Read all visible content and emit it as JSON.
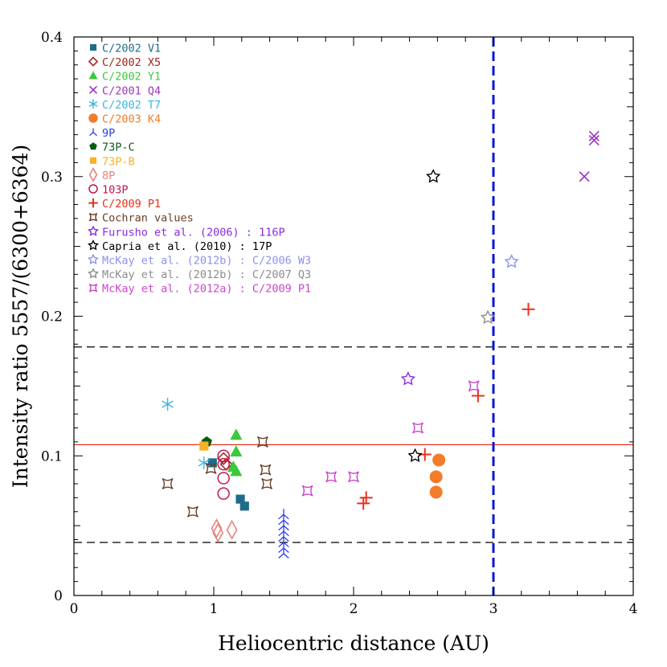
{
  "chart_data": {
    "type": "scatter",
    "xlabel": "Heliocentric distance (AU)",
    "ylabel": "Intensity ratio 5557/(6300+6364)",
    "xlim": [
      0,
      4
    ],
    "ylim": [
      0,
      0.4
    ],
    "x_ticks": [
      0,
      1,
      2,
      3,
      4
    ],
    "x_tick_labels": [
      "0",
      "1",
      "2",
      "3",
      "4"
    ],
    "y_ticks": [
      0,
      0.1,
      0.2,
      0.3,
      0.4
    ],
    "y_tick_labels": [
      "0",
      "0.1",
      "0.2",
      "0.3",
      "0.4"
    ],
    "grid": false,
    "legend_position": "top-left",
    "reference_lines": [
      {
        "orientation": "horizontal",
        "value": 0.108,
        "style": "solid",
        "color": "#e8301c"
      },
      {
        "orientation": "horizontal",
        "value": 0.178,
        "style": "dashed",
        "color": "#000000"
      },
      {
        "orientation": "horizontal",
        "value": 0.038,
        "style": "dashed",
        "color": "#000000"
      },
      {
        "orientation": "vertical",
        "value": 3.0,
        "style": "dashed",
        "color": "#0b17d4"
      }
    ],
    "series": [
      {
        "name": "C/2002 V1",
        "color": "#1f6b8c",
        "marker": "square",
        "points": [
          [
            0.99,
            0.095
          ],
          [
            1.19,
            0.069
          ],
          [
            1.22,
            0.064
          ]
        ]
      },
      {
        "name": "C/2002 X5",
        "color": "#a1261f",
        "marker": "diamond",
        "points": [
          [
            1.07,
            0.098
          ],
          [
            1.09,
            0.094
          ]
        ]
      },
      {
        "name": "C/2002 Y1",
        "color": "#3cc93c",
        "marker": "triangle",
        "points": [
          [
            1.16,
            0.115
          ],
          [
            1.16,
            0.103
          ],
          [
            1.14,
            0.092
          ],
          [
            1.16,
            0.089
          ]
        ]
      },
      {
        "name": "C/2001 Q4",
        "color": "#9d36c0",
        "marker": "x",
        "points": [
          [
            3.72,
            0.329
          ],
          [
            3.72,
            0.326
          ],
          [
            3.65,
            0.3
          ]
        ]
      },
      {
        "name": "C/2002 T7",
        "color": "#39b7e0",
        "marker": "asterisk",
        "points": [
          [
            0.67,
            0.137
          ],
          [
            0.93,
            0.095
          ]
        ]
      },
      {
        "name": "C/2003 K4",
        "color": "#f37c2a",
        "marker": "circle",
        "points": [
          [
            2.61,
            0.097
          ],
          [
            2.59,
            0.085
          ],
          [
            2.59,
            0.074
          ]
        ]
      },
      {
        "name": "9P",
        "color": "#2a3fe8",
        "marker": "tripod",
        "points": [
          [
            1.5,
            0.058
          ],
          [
            1.5,
            0.054
          ],
          [
            1.5,
            0.05
          ],
          [
            1.5,
            0.046
          ],
          [
            1.5,
            0.042
          ],
          [
            1.5,
            0.038
          ],
          [
            1.5,
            0.034
          ],
          [
            1.5,
            0.03
          ]
        ]
      },
      {
        "name": "73P-C",
        "color": "#0b5a16",
        "marker": "pentagon",
        "points": [
          [
            0.95,
            0.11
          ]
        ]
      },
      {
        "name": "73P-B",
        "color": "#f5b323",
        "marker": "square",
        "points": [
          [
            0.93,
            0.107
          ]
        ]
      },
      {
        "name": "8P",
        "color": "#e8837d",
        "marker": "diamond-tall",
        "points": [
          [
            1.02,
            0.048
          ],
          [
            1.03,
            0.045
          ],
          [
            1.13,
            0.047
          ]
        ]
      },
      {
        "name": "103P",
        "color": "#c0174f",
        "marker": "circle-open",
        "points": [
          [
            1.07,
            0.1
          ],
          [
            1.07,
            0.094
          ],
          [
            1.07,
            0.084
          ],
          [
            1.07,
            0.073
          ]
        ]
      },
      {
        "name": "C/2009 P1",
        "color": "#e8301c",
        "marker": "plus",
        "points": [
          [
            3.25,
            0.205
          ],
          [
            2.89,
            0.143
          ],
          [
            2.51,
            0.101
          ],
          [
            2.09,
            0.07
          ],
          [
            2.07,
            0.066
          ]
        ]
      },
      {
        "name": "Cochran values",
        "color": "#6b4028",
        "marker": "star4",
        "points": [
          [
            0.67,
            0.08
          ],
          [
            0.85,
            0.06
          ],
          [
            0.98,
            0.091
          ],
          [
            1.35,
            0.11
          ],
          [
            1.37,
            0.09
          ],
          [
            1.38,
            0.08
          ]
        ]
      },
      {
        "name": "Furusho et al. (2006) : 116P",
        "color": "#8a2be2",
        "marker": "star",
        "points": [
          [
            2.39,
            0.155
          ]
        ]
      },
      {
        "name": "Capria et al. (2010) : 17P",
        "color": "#000000",
        "marker": "star",
        "points": [
          [
            2.57,
            0.3
          ],
          [
            2.44,
            0.1
          ]
        ]
      },
      {
        "name": "McKay et al. (2012b) : C/2006 W3",
        "color": "#8f8ff0",
        "marker": "star",
        "points": [
          [
            3.13,
            0.239
          ]
        ]
      },
      {
        "name": "McKay et al. (2012b) : C/2007 Q3",
        "color": "#8c8c8c",
        "marker": "star",
        "points": [
          [
            2.96,
            0.199
          ]
        ]
      },
      {
        "name": "McKay et al. (2012a) : C/2009 P1",
        "color": "#cc44cc",
        "marker": "star4",
        "points": [
          [
            1.67,
            0.075
          ],
          [
            1.84,
            0.085
          ],
          [
            2.0,
            0.085
          ],
          [
            2.46,
            0.12
          ],
          [
            2.86,
            0.15
          ]
        ]
      }
    ]
  }
}
